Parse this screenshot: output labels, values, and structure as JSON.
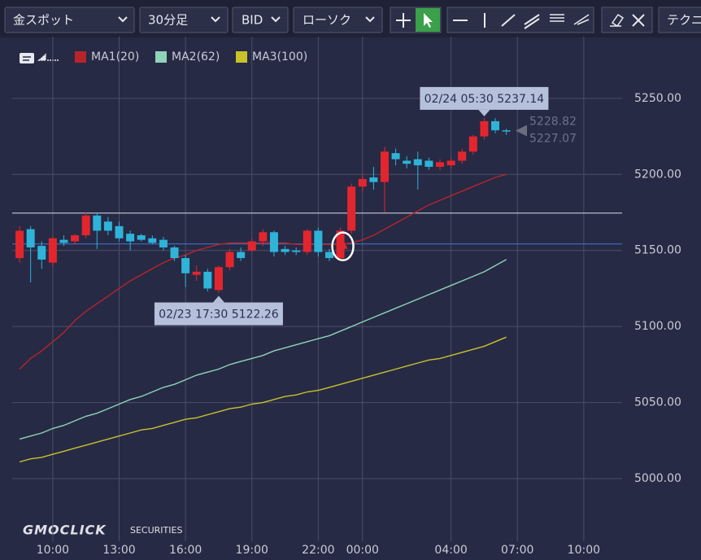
{
  "toolbar": {
    "symbol": "金スポット",
    "timeframe": "30分足",
    "price_type": "BID",
    "chart_style": "ローソク",
    "technical": "テクニ"
  },
  "logo": {
    "brand": "GMOCLICK",
    "sub": "SECURITIES"
  },
  "chart_data": {
    "type": "candlestick",
    "x": [
      "02/23 08:30",
      "02/23 09:00",
      "02/23 09:30",
      "02/23 10:00",
      "02/23 10:30",
      "02/23 11:00",
      "02/23 11:30",
      "02/23 12:00",
      "02/23 12:30",
      "02/23 13:00",
      "02/23 13:30",
      "02/23 14:00",
      "02/23 14:30",
      "02/23 15:00",
      "02/23 15:30",
      "02/23 16:00",
      "02/23 16:30",
      "02/23 17:00",
      "02/23 17:30",
      "02/23 18:00",
      "02/23 18:30",
      "02/23 19:00",
      "02/23 19:30",
      "02/23 20:00",
      "02/23 20:30",
      "02/23 21:00",
      "02/23 21:30",
      "02/23 22:00",
      "02/23 22:30",
      "02/23 23:00",
      "02/23 23:30",
      "02/24 00:00",
      "02/24 00:30",
      "02/24 01:00",
      "02/24 01:30",
      "02/24 02:00",
      "02/24 02:30",
      "02/24 03:00",
      "02/24 03:30",
      "02/24 04:00",
      "02/24 04:30",
      "02/24 05:00",
      "02/24 05:30",
      "02/24 06:00",
      "02/24 06:30"
    ],
    "open": [
      5145,
      5164,
      5153,
      5142,
      5157,
      5156,
      5160,
      5173,
      5169,
      5166,
      5161,
      5160,
      5158,
      5157,
      5152,
      5145,
      5134,
      5136,
      5124,
      5139,
      5149,
      5150,
      5156,
      5162,
      5151,
      5150,
      5149,
      5163,
      5149,
      5145,
      5163,
      5192,
      5198,
      5195,
      5214,
      5209,
      5210,
      5209,
      5205,
      5206,
      5209,
      5215,
      5225,
      5235,
      5229
    ],
    "high": [
      5166,
      5166,
      5156,
      5159,
      5160,
      5161,
      5175,
      5175,
      5172,
      5169,
      5163,
      5161,
      5160,
      5159,
      5153,
      5147,
      5140,
      5138,
      5140,
      5151,
      5152,
      5158,
      5164,
      5163,
      5153,
      5152,
      5164,
      5165,
      5151,
      5165,
      5194,
      5200,
      5205,
      5218,
      5217,
      5212,
      5215,
      5211,
      5210,
      5211,
      5217,
      5226,
      5237.14,
      5237,
      5230
    ],
    "low": [
      5142,
      5129,
      5138,
      5140,
      5153,
      5154,
      5158,
      5151,
      5160,
      5156,
      5150,
      5156,
      5154,
      5150,
      5143,
      5126,
      5130,
      5123,
      5122.26,
      5137,
      5143,
      5149,
      5153,
      5146,
      5147,
      5147,
      5147,
      5146,
      5143,
      5143,
      5161,
      5189,
      5190,
      5175,
      5206,
      5204,
      5190,
      5203,
      5203,
      5204,
      5207,
      5213,
      5223,
      5227,
      5226
    ],
    "close": [
      5163,
      5152,
      5144,
      5158,
      5155,
      5160,
      5173,
      5163,
      5163,
      5158,
      5156,
      5157,
      5155,
      5152,
      5145,
      5135,
      5136,
      5125,
      5139,
      5149,
      5145,
      5156,
      5162,
      5149,
      5149,
      5149,
      5163,
      5149,
      5145,
      5163,
      5192,
      5197,
      5195,
      5215,
      5210,
      5207,
      5206,
      5205,
      5208,
      5209,
      5215,
      5225,
      5235,
      5229,
      5228.82
    ],
    "up_color": "#e3262e",
    "down_color": "#2fb3d9",
    "series": [
      {
        "name": "MA1(20)",
        "color": "#b8242a",
        "values": [
          5072,
          5079,
          5084,
          5090,
          5096,
          5104,
          5110,
          5115,
          5120,
          5125,
          5130,
          5134,
          5138,
          5142,
          5145,
          5147,
          5150,
          5152,
          5154,
          5155,
          5155,
          5155,
          5155,
          5155,
          5155,
          5154,
          5154,
          5154,
          5154,
          5154,
          5155,
          5157,
          5160,
          5164,
          5168,
          5172,
          5176,
          5180,
          5183,
          5186,
          5189,
          5192,
          5195,
          5198,
          5200
        ]
      },
      {
        "name": "MA2(62)",
        "color": "#8fd3b8",
        "values": [
          5026,
          5028,
          5030,
          5033,
          5035,
          5038,
          5041,
          5043,
          5046,
          5049,
          5052,
          5054,
          5057,
          5060,
          5062,
          5065,
          5068,
          5070,
          5072,
          5075,
          5077,
          5079,
          5081,
          5084,
          5086,
          5088,
          5090,
          5092,
          5094,
          5097,
          5100,
          5103,
          5106,
          5109,
          5112,
          5115,
          5118,
          5121,
          5124,
          5127,
          5130,
          5133,
          5136,
          5140,
          5144
        ]
      },
      {
        "name": "MA3(100)",
        "color": "#c9c22a",
        "values": [
          5011,
          5013,
          5014,
          5016,
          5018,
          5020,
          5022,
          5024,
          5026,
          5028,
          5030,
          5032,
          5033,
          5035,
          5037,
          5039,
          5040,
          5042,
          5044,
          5046,
          5047,
          5049,
          5050,
          5052,
          5054,
          5055,
          5057,
          5058,
          5060,
          5062,
          5064,
          5066,
          5068,
          5070,
          5072,
          5074,
          5076,
          5078,
          5079,
          5081,
          5083,
          5085,
          5087,
          5090,
          5093
        ]
      }
    ],
    "ylim": [
      4958.8,
      5290.6
    ],
    "yticks": [
      {
        "value": 5000,
        "label": "5000.00"
      },
      {
        "value": 5050,
        "label": "5050.00"
      },
      {
        "value": 5100,
        "label": "5100.00"
      },
      {
        "value": 5150,
        "label": "5150.00"
      },
      {
        "value": 5200,
        "label": "5200.00"
      },
      {
        "value": 5250,
        "label": "5250.00"
      }
    ],
    "xlim": [
      "02/23 08:10",
      "02/24 11:44"
    ],
    "xticks": [
      {
        "value": "02/23 10:00",
        "label": "10:00"
      },
      {
        "value": "02/23 13:00",
        "label": "13:00"
      },
      {
        "value": "02/23 16:00",
        "label": "16:00"
      },
      {
        "value": "02/23 19:00",
        "label": "19:00"
      },
      {
        "value": "02/23 22:00",
        "label": "22:00"
      },
      {
        "value": "02/24 00:00",
        "label": "00:00"
      },
      {
        "value": "02/24 04:00",
        "label": "04:00"
      },
      {
        "value": "02/24 07:00",
        "label": "07:00"
      },
      {
        "value": "02/24 10:00",
        "label": "10:00"
      }
    ],
    "grid": true,
    "hlines": [
      {
        "value": 5174.6,
        "color": "#b9bccb"
      },
      {
        "value": 5154.3,
        "color": "#3f6fc4"
      }
    ],
    "last_prices": [
      5228.82,
      5227.07
    ],
    "annotations": [
      {
        "label": "02/24 05:30 5237.14",
        "x": "02/24 05:30",
        "value": 5237.14,
        "position": "above"
      },
      {
        "label": "02/23 17:30 5122.26",
        "x": "02/23 17:30",
        "value": 5122.26,
        "position": "below"
      }
    ],
    "signal": {
      "x": "02/23 23:00",
      "value": 5152.7
    }
  }
}
